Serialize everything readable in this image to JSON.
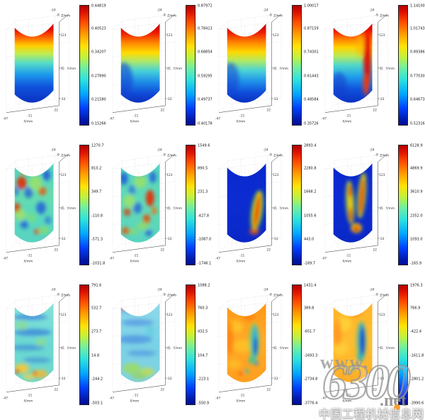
{
  "figure": {
    "layout": "3 rows x 4 columns of 3D cylinder surface color plots, each with its own jet colorbar",
    "background": "#ffffff"
  },
  "colors": {
    "colorbar_top": "#b40000",
    "colorbar_bottom": "#000f96",
    "watermark_accent": "#ff9616",
    "watermark_gray": "#969696"
  },
  "watermark": {
    "www": "www.",
    "big": "6300",
    "net": ".net",
    "cn": "中国工程机械信息网"
  },
  "chart_data": {
    "type": "heatmap",
    "subtype": "3d-cylinder-surface-grid",
    "legend_position": "right of each panel",
    "axes": {
      "x": {
        "label": "X/mm",
        "ticks": [
          "-47",
          "-11",
          "22"
        ]
      },
      "y": {
        "label": "Y/mm",
        "ticks": [
          "123",
          "45",
          "-33"
        ]
      },
      "z": {
        "label": "Z/mm",
        "ticks": [
          "-24",
          "-9"
        ]
      }
    },
    "panels": [
      {
        "row": 1,
        "col": 1,
        "pattern": "smooth",
        "colorbar_labels": [
          "0.44819",
          "0.40523",
          "0.34207",
          "0.27890",
          "0.21580",
          "0.15266"
        ],
        "colorbar_range": [
          0.15266,
          0.44819
        ],
        "description": "Smooth vertical rainbow gradient, red at top rim fading to deep blue at base"
      },
      {
        "row": 1,
        "col": 2,
        "pattern": "smooth",
        "colorbar_labels": [
          "0.87972",
          "0.78413",
          "0.68854",
          "0.59295",
          "0.49737",
          "0.40178"
        ],
        "colorbar_range": [
          0.40178,
          0.87972
        ],
        "description": "Smooth gradient red to blue, blue concentrated at lower left"
      },
      {
        "row": 1,
        "col": 3,
        "pattern": "smooth",
        "colorbar_labels": [
          "1.00017",
          "0.87159",
          "0.74301",
          "0.61443",
          "0.48584",
          "0.35726"
        ],
        "colorbar_range": [
          0.35726,
          1.00017
        ],
        "description": "Smooth gradient red to blue, diagonal transition"
      },
      {
        "row": 1,
        "col": 4,
        "pattern": "smooth-streak",
        "colorbar_labels": [
          "1.14100",
          "1.01743",
          "0.89386",
          "0.77030",
          "0.64673",
          "0.52316"
        ],
        "colorbar_range": [
          0.52316,
          1.141
        ],
        "description": "Gradient red to blue with red vertical band along right edge"
      },
      {
        "row": 2,
        "col": 1,
        "pattern": "mottled",
        "colorbar_labels": [
          "1270.7",
          "810.2",
          "349.7",
          "-110.8",
          "-571.3",
          "-1031.8"
        ],
        "colorbar_range": [
          -1031.8,
          1270.7
        ],
        "description": "Speckled cyan-green field with scattered red and blue patches"
      },
      {
        "row": 2,
        "col": 2,
        "pattern": "mottled",
        "colorbar_labels": [
          "1549.6",
          "890.5",
          "231.3",
          "-427.8",
          "-1087.0",
          "-1746.1"
        ],
        "colorbar_range": [
          -1746.1,
          1549.6
        ],
        "description": "Speckled cyan-green field, red patches concentrated at mid right"
      },
      {
        "row": 2,
        "col": 3,
        "pattern": "blue-streak",
        "colorbar_labels": [
          "2893.4",
          "2280.8",
          "1668.2",
          "1055.6",
          "443.0",
          "-169.7"
        ],
        "colorbar_range": [
          -169.7,
          2893.4
        ],
        "description": "Uniform deep blue with one narrow rainbow shear band at lower right"
      },
      {
        "row": 2,
        "col": 4,
        "pattern": "blue-two-streaks",
        "colorbar_labels": [
          "6128.9",
          "4869.9",
          "3610.9",
          "2352.0",
          "1093.0",
          "-165.9"
        ],
        "colorbar_range": [
          -165.9,
          6128.9
        ],
        "description": "Deep blue with two vertical yellow-red strain bands meeting near the base"
      },
      {
        "row": 3,
        "col": 1,
        "pattern": "cyan-bands",
        "colorbar_labels": [
          "791.6",
          "532.7",
          "273.7",
          "14.8",
          "-244.2",
          "-503.1"
        ],
        "colorbar_range": [
          -503.1,
          791.6
        ],
        "description": "Cyan field with horizontal blue bands and warm orange patches with red spots near base"
      },
      {
        "row": 3,
        "col": 2,
        "pattern": "cyan-calm",
        "colorbar_labels": [
          "1088.2",
          "760.3",
          "432.5",
          "104.7",
          "-223.1",
          "-550.9"
        ],
        "colorbar_range": [
          -550.9,
          1088.2
        ],
        "description": "Pale blue field with horizontal bands, green-yellow base, small red speck at top left"
      },
      {
        "row": 3,
        "col": 3,
        "pattern": "orange-cool-streak",
        "colorbar_labels": [
          "1431.4",
          "389.8",
          "-651.7",
          "-1693.3",
          "-2734.8",
          "-3776.4"
        ],
        "colorbar_range": [
          -3776.4,
          1431.4
        ],
        "description": "Orange field with cool blue-green vertical band at mid right"
      },
      {
        "row": 3,
        "col": 4,
        "pattern": "amber-dark-streak",
        "colorbar_labels": [
          "1976.3",
          "766.9",
          "-422.4",
          "-1611.8",
          "-2801.2",
          "-3990.6"
        ],
        "colorbar_range": [
          -3990.6,
          1976.3
        ],
        "description": "Amber-orange field with dark blue vertical band at mid right"
      }
    ]
  }
}
